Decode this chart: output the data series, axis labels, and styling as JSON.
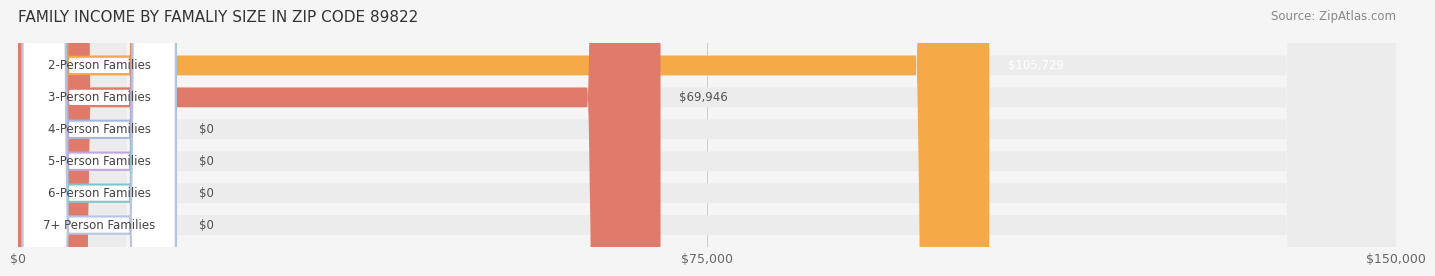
{
  "title": "FAMILY INCOME BY FAMALIY SIZE IN ZIP CODE 89822",
  "source": "Source: ZipAtlas.com",
  "categories": [
    "2-Person Families",
    "3-Person Families",
    "4-Person Families",
    "5-Person Families",
    "6-Person Families",
    "7+ Person Families"
  ],
  "values": [
    105729,
    69946,
    0,
    0,
    0,
    0
  ],
  "bar_colors": [
    "#f5a947",
    "#e07b6b",
    "#a8b8d8",
    "#c4a8d8",
    "#7ec8c8",
    "#b8c4e0"
  ],
  "label_colors": [
    "#f5a947",
    "#e07b6b",
    "#a8b8d8",
    "#c4a8d8",
    "#7ec8c8",
    "#b8c4e0"
  ],
  "value_labels": [
    "$105,729",
    "$69,946",
    "$0",
    "$0",
    "$0",
    "$0"
  ],
  "xlim": [
    0,
    150000
  ],
  "xticks": [
    0,
    75000,
    150000
  ],
  "xtick_labels": [
    "$0",
    "$75,000",
    "$150,000"
  ],
  "background_color": "#f5f5f5",
  "bar_background_color": "#ececec",
  "title_fontsize": 11,
  "source_fontsize": 8.5,
  "label_fontsize": 8.5,
  "value_fontsize": 8.5,
  "tick_fontsize": 9
}
